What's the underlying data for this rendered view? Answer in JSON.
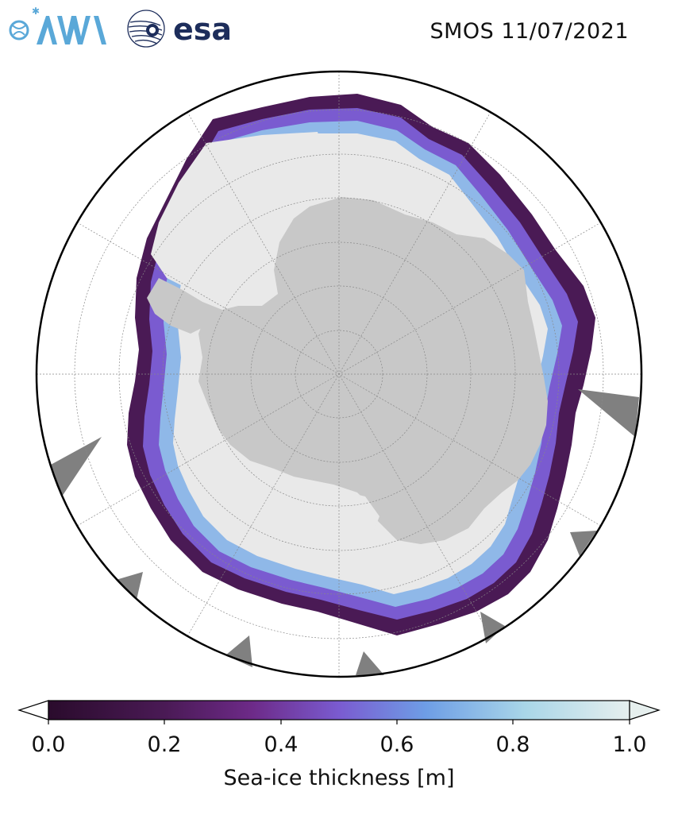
{
  "header": {
    "date_label": "SMOS 11/07/2021",
    "logos": [
      {
        "name": "awi-logo",
        "text": "AWI",
        "color": "#5aa8d8"
      },
      {
        "name": "esa-logo",
        "text": "esa",
        "color": "#1d2d5b"
      }
    ]
  },
  "map": {
    "projection": "south-polar-stereographic",
    "colors": {
      "land": "#c8c8c8",
      "ice_shelf": "#e9e9e9",
      "ocean": "#ffffff",
      "missing_data": "#808080",
      "boundary": "#000000",
      "graticule": "#888888"
    }
  },
  "colorbar": {
    "label": "Sea-ice thickness [m]",
    "ticks": [
      "0.0",
      "0.2",
      "0.4",
      "0.6",
      "0.8",
      "1.0"
    ],
    "range": [
      0.0,
      1.0
    ],
    "colormap_stops": [
      "#2a0b2c",
      "#4a1a55",
      "#6d2a88",
      "#7a5bd0",
      "#6e9ee6",
      "#a9d6e8",
      "#e6efee"
    ]
  }
}
